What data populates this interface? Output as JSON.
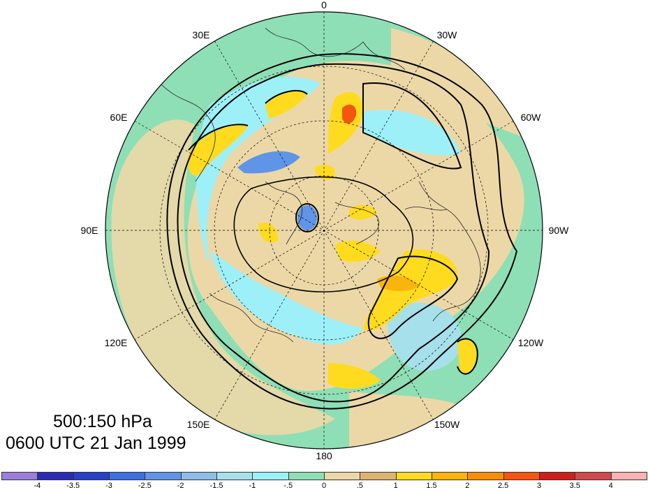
{
  "map": {
    "projection": "polar stereographic (north pole)",
    "longitude_labels": [
      "0",
      "30W",
      "60W",
      "90W",
      "120W",
      "150W",
      "180",
      "150E",
      "120E",
      "90E",
      "60E",
      "30E"
    ]
  },
  "title": {
    "line1": "500:150 hPa",
    "line2": "0600 UTC 21 Jan 1999"
  },
  "colorbar": {
    "ticks": [
      "-4",
      "-3.5",
      "-3",
      "-2.5",
      "-2",
      "-1.5",
      "-1",
      "-.5",
      "0",
      ".5",
      "1",
      "1.5",
      "2",
      "2.5",
      "3",
      "3.5",
      "4"
    ],
    "colors": [
      "#9b7ed9",
      "#2a2bb5",
      "#2741c9",
      "#3d6fdf",
      "#5f94e6",
      "#8fbde9",
      "#a6e0ea",
      "#9ef0f8",
      "#8edfb5",
      "#ecd8a7",
      "#dfb36f",
      "#ffdb1f",
      "#f9b40e",
      "#f88e08",
      "#f45510",
      "#cf1f1a",
      "#d04a4a",
      "#f9b2b2"
    ]
  },
  "colors": {
    "ocean_neutral": "#8edfb5",
    "land_neutral": "#ecd8a7",
    "contour": "#000000"
  }
}
